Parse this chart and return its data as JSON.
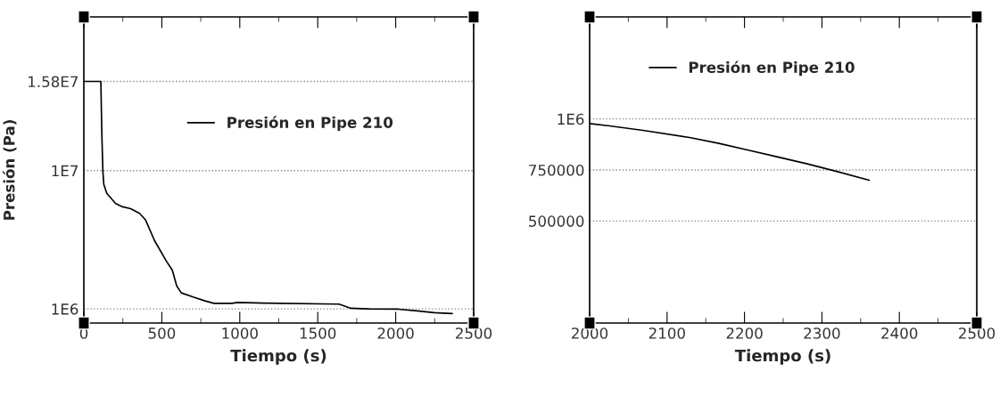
{
  "chart_data": [
    {
      "type": "line",
      "xlabel": "Tiempo (s)",
      "ylabel": "Presión (Pa)",
      "xlim": [
        0,
        2500
      ],
      "ylim": [
        80000,
        20000000
      ],
      "xticks": [
        0,
        {
          "value": 250,
          "label": null
        },
        500,
        {
          "value": 750,
          "label": null
        },
        1000,
        {
          "value": 1250,
          "label": null
        },
        1500,
        {
          "value": 1750,
          "label": null
        },
        2000,
        {
          "value": 2250,
          "label": null
        },
        2500
      ],
      "yticks": [
        {
          "value": 1000000,
          "label": "1E6"
        },
        {
          "value": 10000000,
          "label": "1E7"
        },
        {
          "value": 15800000,
          "label": "1.58E7"
        }
      ],
      "grid": "y",
      "legend": "upper center",
      "line_style": "solid",
      "marker": "none",
      "series": [
        {
          "name": "Presión en Pipe 210",
          "color": "#000000",
          "x": [
            0,
            109,
            115,
            122,
            128,
            147,
            204,
            243,
            300,
            357,
            395,
            453,
            529,
            567,
            596,
            625,
            701,
            777,
            835,
            949,
            987,
            1159,
            1637,
            1713,
            1828,
            2019,
            2153,
            2248,
            2363
          ],
          "values": [
            15800000,
            15800000,
            12550000,
            9960000,
            9100000,
            8520000,
            7850000,
            7660000,
            7520000,
            7220000,
            6800000,
            5450000,
            4110000,
            3530000,
            2480000,
            2040000,
            1770000,
            1520000,
            1360000,
            1360000,
            1420000,
            1380000,
            1310000,
            1040000,
            1000000,
            980000,
            850000,
            750000,
            700000
          ]
        }
      ]
    },
    {
      "type": "line",
      "xlabel": "Tiempo (s)",
      "xlim": [
        2000,
        2500
      ],
      "ylim": [
        0,
        1500000
      ],
      "xticks": [
        2000,
        {
          "value": 2050,
          "label": null
        },
        2100,
        {
          "value": 2150,
          "label": null
        },
        2200,
        {
          "value": 2250,
          "label": null
        },
        2300,
        {
          "value": 2350,
          "label": null
        },
        2400,
        {
          "value": 2450,
          "label": null
        },
        2500
      ],
      "yticks": [
        500000,
        750000,
        {
          "value": 1000000,
          "label": "1E6"
        }
      ],
      "grid": "y",
      "legend": "upper center",
      "line_style": "solid",
      "marker": "none",
      "series": [
        {
          "name": "Presión en Pipe 210",
          "color": "#000000",
          "x": [
            2000,
            2026,
            2071,
            2129,
            2167,
            2205,
            2243,
            2281,
            2319,
            2361
          ],
          "values": [
            977000,
            966000,
            943000,
            909000,
            880000,
            847000,
            814000,
            780000,
            743000,
            700000
          ]
        }
      ]
    }
  ]
}
